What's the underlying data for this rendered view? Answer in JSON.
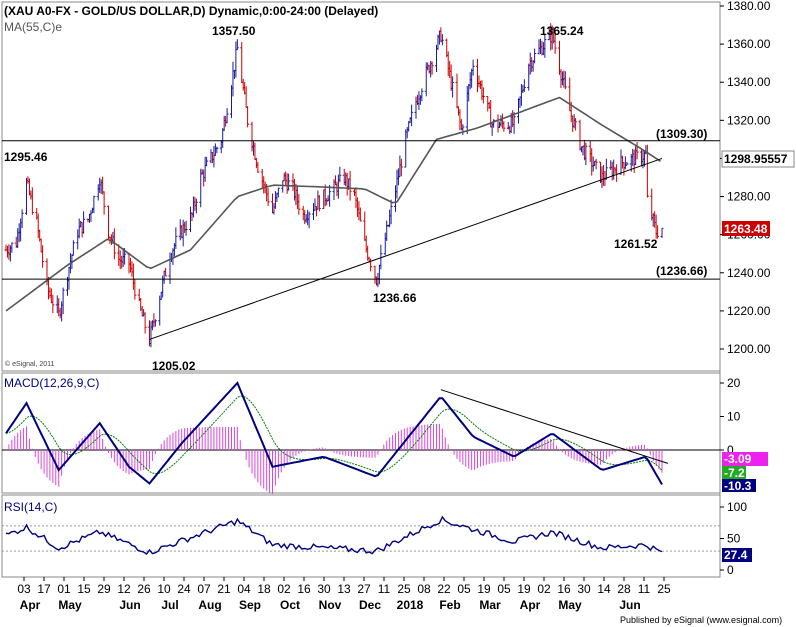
{
  "price_panel": {
    "title": "(XAU A0-FX - GOLD/US DOLLAR,D) Dynamic,0:00-24:00 (Delayed)",
    "ma_label": "MA(55,C)e",
    "watermark": "© eSignal, 2011",
    "y_ticks": [
      "1380.00",
      "1360.00",
      "1340.00",
      "1320.00",
      "1300.00",
      "1280.00",
      "1260.00",
      "1240.00",
      "1220.00",
      "1200.00"
    ],
    "current_price_tag": "1298.95557",
    "last_price_tag": "1263.48",
    "annotations": {
      "low_1205": "1205.02",
      "high_1357": "1357.50",
      "level_1295": "1295.46",
      "low_1236": "1236.66",
      "high_1365": "1365.24",
      "level_1309": "(1309.30)",
      "level_1236": "(1236.66)",
      "low_1261": "1261.52"
    }
  },
  "macd_panel": {
    "label": "MACD(12,26,9,C)",
    "y_ticks": [
      "20",
      "10",
      "0"
    ],
    "tags": {
      "histogram": "-3.09",
      "signal": "-7.2",
      "macd": "-10.3"
    }
  },
  "rsi_panel": {
    "label": "RSI(14,C)",
    "y_ticks": [
      "100",
      "50",
      "0"
    ],
    "tag": "27.4"
  },
  "x_axis": {
    "day_labels": [
      "03",
      "17",
      "01",
      "15",
      "29",
      "12",
      "26",
      "10",
      "24",
      "07",
      "21",
      "04",
      "18",
      "02",
      "16",
      "30",
      "13",
      "27",
      "11",
      "25",
      "08",
      "22",
      "05",
      "19",
      "05",
      "19",
      "02",
      "16",
      "30",
      "14",
      "28",
      "11",
      "25"
    ],
    "month_labels": [
      "Apr",
      "May",
      "Jun",
      "Jul",
      "Aug",
      "Sep",
      "Oct",
      "Nov",
      "Dec",
      "2018",
      "Feb",
      "Mar",
      "Apr",
      "May",
      "Jun"
    ]
  },
  "footer": "Published by eSignal (www.esignal.com)",
  "colors": {
    "up": "#1a1aa0",
    "down": "#cc0000",
    "ma": "#555555",
    "macd": "#000080",
    "signal": "#008000",
    "histogram": "#dd44dd",
    "tag_red": "#cc0000",
    "tag_green": "#22aa22",
    "tag_blue": "#000080",
    "tag_magenta": "#ee22ee"
  },
  "chart_data": {
    "type": "candlestick",
    "series_name": "XAU A0-FX - GOLD/US DOLLAR",
    "timeframe": "daily",
    "x_start": "2017-04-03",
    "x_end": "2018-06-25",
    "ylim": [
      1195,
      1385
    ],
    "close_path": [
      {
        "date": "2017-04-03",
        "close": 1252
      },
      {
        "date": "2017-04-10",
        "close": 1256
      },
      {
        "date": "2017-04-17",
        "close": 1287
      },
      {
        "date": "2017-04-24",
        "close": 1266
      },
      {
        "date": "2017-05-01",
        "close": 1232
      },
      {
        "date": "2017-05-09",
        "close": 1218
      },
      {
        "date": "2017-05-15",
        "close": 1240
      },
      {
        "date": "2017-05-22",
        "close": 1262
      },
      {
        "date": "2017-05-29",
        "close": 1268
      },
      {
        "date": "2017-06-06",
        "close": 1290
      },
      {
        "date": "2017-06-12",
        "close": 1262
      },
      {
        "date": "2017-06-19",
        "close": 1247
      },
      {
        "date": "2017-06-26",
        "close": 1245
      },
      {
        "date": "2017-07-03",
        "close": 1222
      },
      {
        "date": "2017-07-10",
        "close": 1205.02
      },
      {
        "date": "2017-07-17",
        "close": 1228
      },
      {
        "date": "2017-07-24",
        "close": 1250
      },
      {
        "date": "2017-08-01",
        "close": 1262
      },
      {
        "date": "2017-08-08",
        "close": 1270
      },
      {
        "date": "2017-08-14",
        "close": 1290
      },
      {
        "date": "2017-08-28",
        "close": 1310
      },
      {
        "date": "2017-09-08",
        "close": 1357.5
      },
      {
        "date": "2017-09-15",
        "close": 1320
      },
      {
        "date": "2017-09-22",
        "close": 1296
      },
      {
        "date": "2017-10-02",
        "close": 1272
      },
      {
        "date": "2017-10-09",
        "close": 1290
      },
      {
        "date": "2017-10-16",
        "close": 1284
      },
      {
        "date": "2017-10-23",
        "close": 1270
      },
      {
        "date": "2017-10-30",
        "close": 1275
      },
      {
        "date": "2017-11-13",
        "close": 1284
      },
      {
        "date": "2017-11-20",
        "close": 1290
      },
      {
        "date": "2017-11-27",
        "close": 1280
      },
      {
        "date": "2017-12-04",
        "close": 1255
      },
      {
        "date": "2017-12-12",
        "close": 1236.66
      },
      {
        "date": "2017-12-20",
        "close": 1265
      },
      {
        "date": "2018-01-01",
        "close": 1310
      },
      {
        "date": "2018-01-08",
        "close": 1330
      },
      {
        "date": "2018-01-25",
        "close": 1365
      },
      {
        "date": "2018-02-08",
        "close": 1315
      },
      {
        "date": "2018-02-16",
        "close": 1350
      },
      {
        "date": "2018-03-01",
        "close": 1318
      },
      {
        "date": "2018-03-16",
        "close": 1318
      },
      {
        "date": "2018-03-26",
        "close": 1350
      },
      {
        "date": "2018-04-11",
        "close": 1365.24
      },
      {
        "date": "2018-04-23",
        "close": 1325
      },
      {
        "date": "2018-05-01",
        "close": 1306
      },
      {
        "date": "2018-05-15",
        "close": 1290
      },
      {
        "date": "2018-05-29",
        "close": 1298
      },
      {
        "date": "2018-06-14",
        "close": 1302
      },
      {
        "date": "2018-06-15",
        "close": 1278
      },
      {
        "date": "2018-06-21",
        "close": 1261.52
      },
      {
        "date": "2018-06-25",
        "close": 1263.48
      }
    ],
    "moving_average_55": [
      {
        "date": "2017-04-03",
        "value": 1220
      },
      {
        "date": "2017-05-15",
        "value": 1244
      },
      {
        "date": "2017-06-12",
        "value": 1258
      },
      {
        "date": "2017-07-10",
        "value": 1242
      },
      {
        "date": "2017-08-07",
        "value": 1252
      },
      {
        "date": "2017-09-08",
        "value": 1280
      },
      {
        "date": "2017-10-02",
        "value": 1286
      },
      {
        "date": "2017-11-06",
        "value": 1285
      },
      {
        "date": "2017-12-04",
        "value": 1284
      },
      {
        "date": "2017-12-25",
        "value": 1276
      },
      {
        "date": "2018-01-22",
        "value": 1310
      },
      {
        "date": "2018-02-19",
        "value": 1316
      },
      {
        "date": "2018-03-19",
        "value": 1324
      },
      {
        "date": "2018-04-16",
        "value": 1332
      },
      {
        "date": "2018-05-14",
        "value": 1318
      },
      {
        "date": "2018-06-11",
        "value": 1305
      },
      {
        "date": "2018-06-25",
        "value": 1298
      }
    ],
    "horizontal_lines": [
      1309.3,
      1236.66
    ],
    "trendline": {
      "from": {
        "date": "2017-07-10",
        "value": 1205.02
      },
      "to": {
        "date": "2018-06-25",
        "value": 1300
      }
    },
    "labels": [
      "1357.50",
      "1365.24",
      "1295.46",
      "1236.66",
      "1205.02",
      "1261.52",
      "(1309.30)",
      "(1236.66)"
    ],
    "macd": {
      "ylim": [
        -14,
        24
      ],
      "macd_path": [
        {
          "date": "2017-04-03",
          "value": 5
        },
        {
          "date": "2017-04-17",
          "value": 14
        },
        {
          "date": "2017-05-09",
          "value": -6
        },
        {
          "date": "2017-06-06",
          "value": 8
        },
        {
          "date": "2017-06-26",
          "value": -5
        },
        {
          "date": "2017-07-10",
          "value": -10
        },
        {
          "date": "2017-08-01",
          "value": 2
        },
        {
          "date": "2017-09-08",
          "value": 20
        },
        {
          "date": "2017-10-02",
          "value": -5
        },
        {
          "date": "2017-11-06",
          "value": -2
        },
        {
          "date": "2017-12-12",
          "value": -8
        },
        {
          "date": "2018-01-25",
          "value": 16
        },
        {
          "date": "2018-02-16",
          "value": 4
        },
        {
          "date": "2018-03-16",
          "value": -2
        },
        {
          "date": "2018-04-11",
          "value": 5
        },
        {
          "date": "2018-05-15",
          "value": -6
        },
        {
          "date": "2018-06-14",
          "value": -2
        },
        {
          "date": "2018-06-25",
          "value": -10.3
        }
      ],
      "latest": {
        "histogram": -3.09,
        "signal": -7.2,
        "macd": -10.3
      }
    },
    "rsi": {
      "ylim": [
        0,
        100
      ],
      "reference_levels": [
        70,
        30
      ],
      "rsi_path": [
        {
          "date": "2017-04-03",
          "value": 55
        },
        {
          "date": "2017-04-17",
          "value": 68
        },
        {
          "date": "2017-05-09",
          "value": 35
        },
        {
          "date": "2017-06-06",
          "value": 60
        },
        {
          "date": "2017-07-10",
          "value": 28
        },
        {
          "date": "2017-09-08",
          "value": 78
        },
        {
          "date": "2017-10-02",
          "value": 40
        },
        {
          "date": "2017-12-12",
          "value": 30
        },
        {
          "date": "2018-01-25",
          "value": 80
        },
        {
          "date": "2018-03-16",
          "value": 45
        },
        {
          "date": "2018-04-11",
          "value": 60
        },
        {
          "date": "2018-05-15",
          "value": 35
        },
        {
          "date": "2018-06-14",
          "value": 40
        },
        {
          "date": "2018-06-25",
          "value": 27.4
        }
      ]
    }
  }
}
